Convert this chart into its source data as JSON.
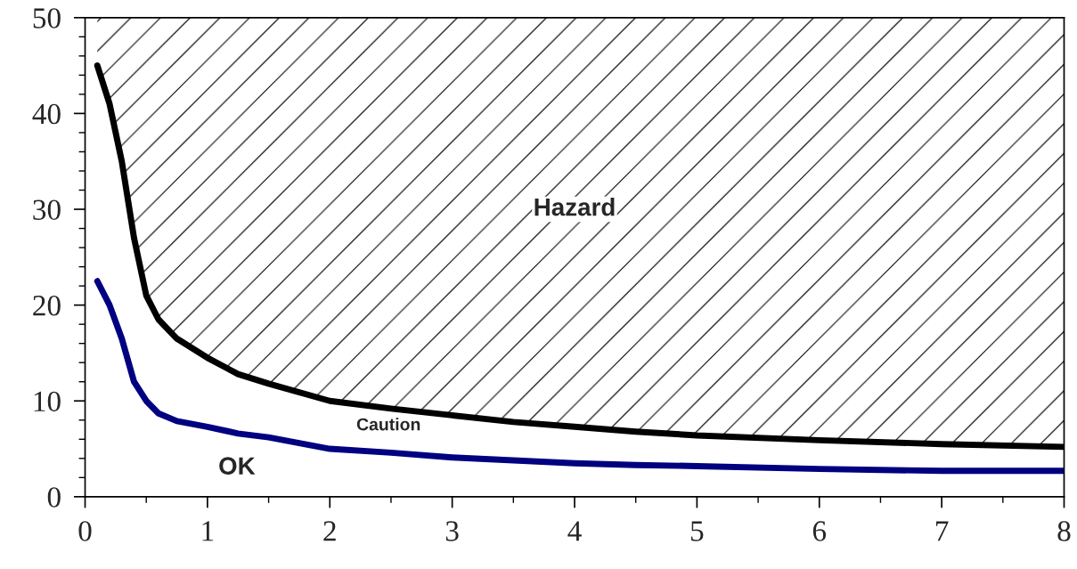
{
  "chart_data": {
    "type": "line",
    "x": [
      0.1,
      0.2,
      0.3,
      0.4,
      0.5,
      0.6,
      0.75,
      1,
      1.25,
      1.5,
      2,
      2.5,
      3,
      3.5,
      4,
      4.5,
      5,
      6,
      7,
      8
    ],
    "series": [
      {
        "color": "#000000",
        "values": [
          45,
          41,
          35,
          27,
          21,
          18.5,
          16.5,
          14.5,
          12.8,
          11.8,
          10,
          9.2,
          8.5,
          7.8,
          7.3,
          6.8,
          6.4,
          5.9,
          5.5,
          5.2
        ],
        "lower": [
          45,
          41,
          35,
          27,
          21,
          18.5,
          16.5,
          14.5,
          12.8,
          11.8,
          10,
          9.2,
          8.5,
          7.8,
          7.3,
          6.8,
          6.4,
          5.9,
          5.5,
          5.2
        ],
        "upper": [
          50,
          50,
          50,
          50,
          50,
          50,
          50,
          50,
          50,
          50,
          50,
          50,
          50,
          50,
          50,
          50,
          50,
          50,
          50,
          50
        ]
      },
      {
        "color": "#000080",
        "values": [
          22.5,
          20,
          16.5,
          12,
          10,
          8.7,
          7.9,
          7.3,
          6.6,
          6.2,
          5,
          4.6,
          4.1,
          3.8,
          3.5,
          3.3,
          3.2,
          2.9,
          2.7,
          2.7
        ]
      }
    ],
    "xlim": [
      0,
      8
    ],
    "ylim": [
      0,
      50
    ],
    "xticks": [
      0,
      {
        "value": 0.5,
        "label": null
      },
      1,
      {
        "value": 1.5,
        "label": null
      },
      2,
      {
        "value": 2.5,
        "label": null
      },
      3,
      {
        "value": 3.5,
        "label": null
      },
      4,
      {
        "value": 4.5,
        "label": null
      },
      5,
      {
        "value": 5.5,
        "label": null
      },
      6,
      {
        "value": 6.5,
        "label": null
      },
      7,
      {
        "value": 7.5,
        "label": null
      },
      8
    ],
    "yticks": [
      0,
      {
        "value": 2,
        "label": null
      },
      {
        "value": 4,
        "label": null
      },
      {
        "value": 6,
        "label": null
      },
      {
        "value": 8,
        "label": null
      },
      10,
      {
        "value": 12,
        "label": null
      },
      {
        "value": 14,
        "label": null
      },
      {
        "value": 16,
        "label": null
      },
      {
        "value": 18,
        "label": null
      },
      20,
      {
        "value": 22,
        "label": null
      },
      {
        "value": 24,
        "label": null
      },
      {
        "value": 26,
        "label": null
      },
      {
        "value": 28,
        "label": null
      },
      30,
      {
        "value": 32,
        "label": null
      },
      {
        "value": 34,
        "label": null
      },
      {
        "value": 36,
        "label": null
      },
      {
        "value": 38,
        "label": null
      },
      40,
      {
        "value": 42,
        "label": null
      },
      {
        "value": 44,
        "label": null
      },
      {
        "value": 46,
        "label": null
      },
      {
        "value": 48,
        "label": null
      },
      50
    ],
    "annotations": [
      "Hazard",
      "Caution",
      "OK"
    ],
    "grid": false,
    "legend": false,
    "marker": "none",
    "line_style": "solid"
  }
}
